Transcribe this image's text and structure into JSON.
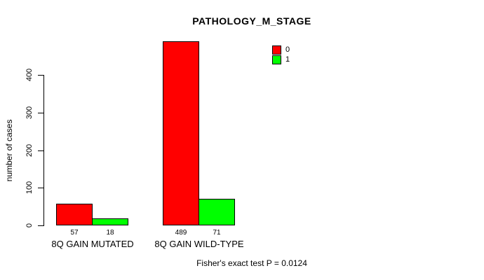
{
  "chart_data": {
    "type": "bar",
    "title": "PATHOLOGY_M_STAGE",
    "xlabel": "",
    "ylabel": "number of cases",
    "categories": [
      "8Q GAIN MUTATED",
      "8Q GAIN WILD-TYPE"
    ],
    "series": [
      {
        "name": "0",
        "color": "#ff0000",
        "values": [
          57,
          489
        ]
      },
      {
        "name": "1",
        "color": "#00ff00",
        "values": [
          18,
          71
        ]
      }
    ],
    "ylim": [
      0,
      489
    ],
    "yticks": [
      0,
      100,
      200,
      300,
      400
    ],
    "grid": false,
    "legend_position": "top-right",
    "annotation": "Fisher's exact test P = 0.0124"
  }
}
